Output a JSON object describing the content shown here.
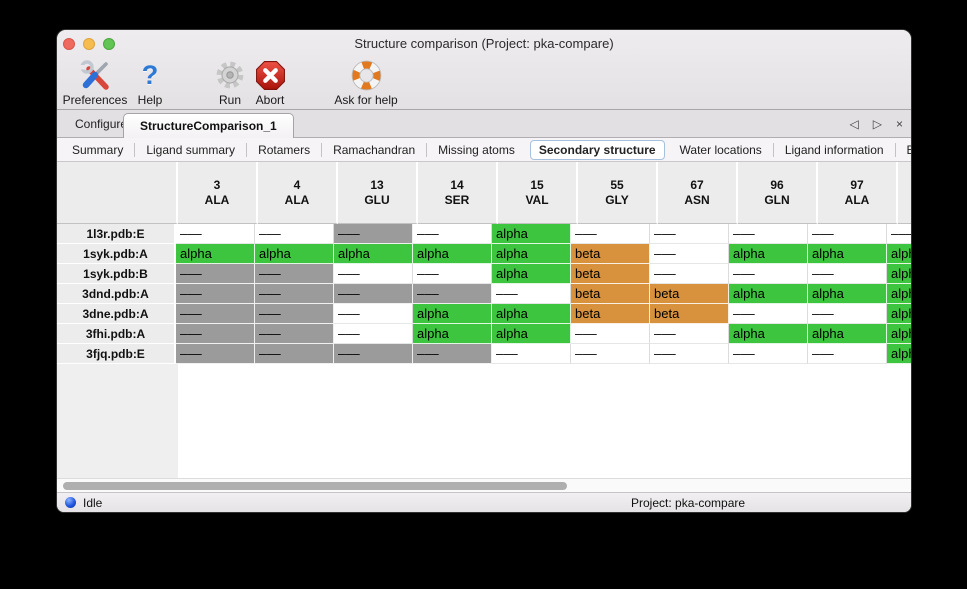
{
  "window": {
    "title": "Structure comparison (Project: pka-compare)"
  },
  "toolbar": {
    "items": [
      {
        "label": "Preferences",
        "icon": "preferences-icon"
      },
      {
        "label": "Help",
        "icon": "help-icon"
      },
      {
        "label": "Run",
        "icon": "run-gear-icon"
      },
      {
        "label": "Abort",
        "icon": "abort-icon"
      },
      {
        "label": "Ask for help",
        "icon": "lifebuoy-icon"
      }
    ]
  },
  "tabs": {
    "items": [
      {
        "label": "Configure",
        "selected": false
      },
      {
        "label": "StructureComparison_1",
        "selected": true
      }
    ],
    "controls": {
      "prev": "◁",
      "next": "▷",
      "close": "×"
    }
  },
  "subtabs": {
    "items": [
      "Summary",
      "Ligand summary",
      "Rotamers",
      "Ramachandran",
      "Missing atoms",
      "Secondary structure",
      "Water locations",
      "Ligand information",
      "B-factors"
    ],
    "selected": "Secondary structure",
    "prev": "◁",
    "next": "▷"
  },
  "table": {
    "columns": [
      {
        "num": "3",
        "res": "ALA"
      },
      {
        "num": "4",
        "res": "ALA"
      },
      {
        "num": "13",
        "res": "GLU"
      },
      {
        "num": "14",
        "res": "SER"
      },
      {
        "num": "15",
        "res": "VAL"
      },
      {
        "num": "55",
        "res": "GLY"
      },
      {
        "num": "67",
        "res": "ASN"
      },
      {
        "num": "96",
        "res": "GLN"
      },
      {
        "num": "97",
        "res": "ALA"
      },
      {
        "num": "",
        "res": ""
      }
    ],
    "rows": [
      {
        "label": "1l3r.pdb:E",
        "cells": [
          [
            "–––",
            "plain"
          ],
          [
            "–––",
            "plain"
          ],
          [
            "–––",
            "gray"
          ],
          [
            "–––",
            "plain"
          ],
          [
            "alpha",
            "alpha"
          ],
          [
            "–––",
            "plain"
          ],
          [
            "–––",
            "plain"
          ],
          [
            "–––",
            "plain"
          ],
          [
            "–––",
            "plain"
          ],
          [
            "–––",
            "plain"
          ]
        ]
      },
      {
        "label": "1syk.pdb:A",
        "cells": [
          [
            "alpha",
            "alpha"
          ],
          [
            "alpha",
            "alpha"
          ],
          [
            "alpha",
            "alpha"
          ],
          [
            "alpha",
            "alpha"
          ],
          [
            "alpha",
            "alpha"
          ],
          [
            "beta",
            "beta"
          ],
          [
            "–––",
            "plain"
          ],
          [
            "alpha",
            "alpha"
          ],
          [
            "alpha",
            "alpha"
          ],
          [
            "alpha",
            "alpha"
          ]
        ]
      },
      {
        "label": "1syk.pdb:B",
        "cells": [
          [
            "–––",
            "gray"
          ],
          [
            "–––",
            "gray"
          ],
          [
            "–––",
            "plain"
          ],
          [
            "–––",
            "plain"
          ],
          [
            "alpha",
            "alpha"
          ],
          [
            "beta",
            "beta"
          ],
          [
            "–––",
            "plain"
          ],
          [
            "–––",
            "plain"
          ],
          [
            "–––",
            "plain"
          ],
          [
            "alpha",
            "alpha"
          ]
        ]
      },
      {
        "label": "3dnd.pdb:A",
        "cells": [
          [
            "–––",
            "gray"
          ],
          [
            "–––",
            "gray"
          ],
          [
            "–––",
            "gray"
          ],
          [
            "–––",
            "gray"
          ],
          [
            "–––",
            "plain"
          ],
          [
            "beta",
            "beta"
          ],
          [
            "beta",
            "beta"
          ],
          [
            "alpha",
            "alpha"
          ],
          [
            "alpha",
            "alpha"
          ],
          [
            "alpha",
            "alpha"
          ]
        ]
      },
      {
        "label": "3dne.pdb:A",
        "cells": [
          [
            "–––",
            "gray"
          ],
          [
            "–––",
            "gray"
          ],
          [
            "–––",
            "plain"
          ],
          [
            "alpha",
            "alpha"
          ],
          [
            "alpha",
            "alpha"
          ],
          [
            "beta",
            "beta"
          ],
          [
            "beta",
            "beta"
          ],
          [
            "–––",
            "plain"
          ],
          [
            "–––",
            "plain"
          ],
          [
            "alpha",
            "alpha"
          ]
        ]
      },
      {
        "label": "3fhi.pdb:A",
        "cells": [
          [
            "–––",
            "gray"
          ],
          [
            "–––",
            "gray"
          ],
          [
            "–––",
            "plain"
          ],
          [
            "alpha",
            "alpha"
          ],
          [
            "alpha",
            "alpha"
          ],
          [
            "–––",
            "plain"
          ],
          [
            "–––",
            "plain"
          ],
          [
            "alpha",
            "alpha"
          ],
          [
            "alpha",
            "alpha"
          ],
          [
            "alpha",
            "alpha"
          ]
        ]
      },
      {
        "label": "3fjq.pdb:E",
        "cells": [
          [
            "–––",
            "gray"
          ],
          [
            "–––",
            "gray"
          ],
          [
            "–––",
            "gray"
          ],
          [
            "–––",
            "gray"
          ],
          [
            "–––",
            "plain"
          ],
          [
            "–––",
            "plain"
          ],
          [
            "–––",
            "plain"
          ],
          [
            "–––",
            "plain"
          ],
          [
            "–––",
            "plain"
          ],
          [
            "alpha",
            "alpha"
          ]
        ]
      }
    ]
  },
  "statusbar": {
    "status": "Idle",
    "project": "Project: pka-compare"
  },
  "colors": {
    "alpha": "#3ec53f",
    "beta": "#d8923e",
    "gray": "#9b9b9b",
    "plain": "#ffffff",
    "accent_blue": "#2e79d4",
    "abort_red": "#c01b10",
    "lifebuoy_orange": "#e2791f"
  }
}
